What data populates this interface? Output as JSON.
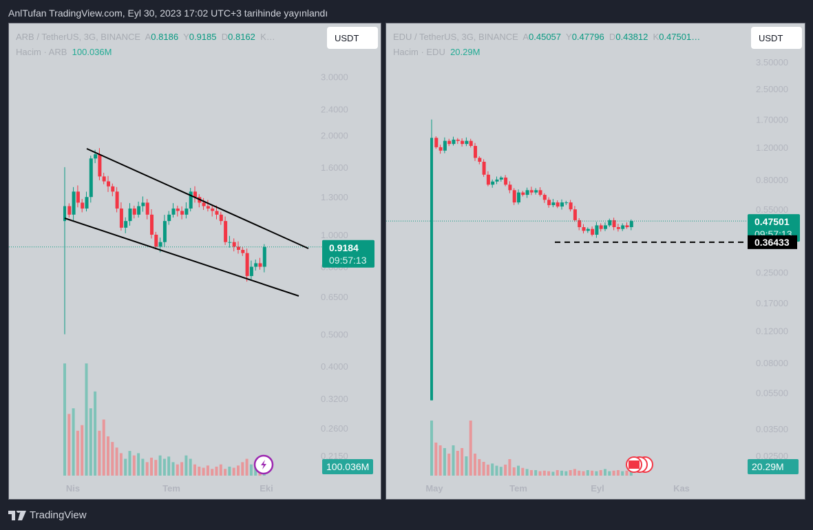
{
  "header": {
    "title": "AnlTufan TradingView.com, Eyl 30, 2023 17:02 UTC+3 tarihinde yayınlandı"
  },
  "footer": {
    "brand": "TradingView"
  },
  "colors": {
    "up": "#089981",
    "down": "#f23645",
    "vol_up": "#7ec3b8",
    "vol_down": "#e8979a",
    "bg": "#ced2d6"
  },
  "left": {
    "symbol": "ARB / TetherUS, 3G, BINANCE",
    "o_label": "A",
    "o": "0.8186",
    "h_label": "Y",
    "h": "0.9185",
    "l_label": "D",
    "l": "0.8162",
    "c_label": "K…",
    "volume_label": "Hacim · ARB",
    "volume": "100.036M",
    "currency": "USDT",
    "price": "0.9184",
    "countdown": "09:57:13",
    "volume_badge": "100.036M",
    "axis": [
      "3.0000",
      "2.4000",
      "2.0000",
      "1.6000",
      "1.3000",
      "1.0000",
      "0.8000",
      "0.6500",
      "0.5000",
      "0.4000",
      "0.3200",
      "0.2600",
      "0.2150"
    ],
    "time_axis": [
      "Nis",
      "Tem",
      "Eki"
    ],
    "first": {
      "o": 1.1,
      "h": 1.6,
      "l": 0.5,
      "c": 1.22
    },
    "closes": [
      1.15,
      1.35,
      1.25,
      1.2,
      1.3,
      1.7,
      1.75,
      1.5,
      1.45,
      1.4,
      1.35,
      1.2,
      1.05,
      1.1,
      1.2,
      1.15,
      1.22,
      1.25,
      1.15,
      1.0,
      0.92,
      0.95,
      1.1,
      1.15,
      1.2,
      1.18,
      1.15,
      1.2,
      1.35,
      1.3,
      1.25,
      1.22,
      1.2,
      1.18,
      1.15,
      1.1,
      0.95,
      0.95,
      0.92,
      0.9,
      0.88,
      0.75,
      0.8,
      0.82,
      0.8,
      0.9184
    ],
    "volumes": [
      100,
      55,
      60,
      40,
      45,
      100,
      60,
      75,
      40,
      50,
      35,
      30,
      25,
      20,
      15,
      22,
      18,
      20,
      15,
      12,
      16,
      14,
      18,
      15,
      17,
      12,
      10,
      12,
      18,
      15,
      10,
      8,
      7,
      9,
      6,
      8,
      10,
      6,
      8,
      7,
      9,
      12,
      15,
      10,
      8,
      6,
      5
    ]
  },
  "right": {
    "symbol": "EDU / TetherUS, 3G, BINANCE",
    "o_label": "A",
    "o": "0.45057",
    "h_label": "Y",
    "h": "0.47796",
    "l_label": "D",
    "l": "0.43812",
    "c_label": "K",
    "c": "0.47501…",
    "volume_label": "Hacim · EDU",
    "volume": "20.29M",
    "currency": "USDT",
    "price": "0.47501",
    "countdown": "09:57:13",
    "level": "0.36433",
    "volume_badge": "20.29M",
    "axis": [
      "3.50000",
      "2.50000",
      "1.70000",
      "1.20000",
      "0.80000",
      "0.55000",
      "0.25000",
      "0.17000",
      "0.12000",
      "0.08000",
      "0.05500",
      "0.03500",
      "0.02500"
    ],
    "time_axis": [
      "May",
      "Tem",
      "Eyl",
      "Kas"
    ],
    "first": {
      "o": 0.05,
      "h": 1.7,
      "l": 0.05,
      "c": 1.35
    },
    "closes": [
      1.2,
      1.15,
      1.3,
      1.25,
      1.32,
      1.3,
      1.25,
      1.3,
      1.22,
      1.05,
      1.0,
      0.85,
      0.75,
      0.78,
      0.8,
      0.82,
      0.75,
      0.7,
      0.6,
      0.68,
      0.66,
      0.7,
      0.68,
      0.7,
      0.66,
      0.62,
      0.58,
      0.6,
      0.57,
      0.6,
      0.6,
      0.55,
      0.48,
      0.44,
      0.42,
      0.43,
      0.4,
      0.45,
      0.43,
      0.45,
      0.48,
      0.44,
      0.43,
      0.45,
      0.44,
      0.475
    ],
    "volumes": [
      100,
      60,
      55,
      50,
      40,
      55,
      45,
      50,
      35,
      100,
      40,
      30,
      25,
      20,
      22,
      18,
      16,
      20,
      30,
      15,
      18,
      14,
      12,
      10,
      10,
      8,
      9,
      8,
      7,
      10,
      9,
      8,
      10,
      12,
      9,
      8,
      10,
      9,
      8,
      10,
      12,
      8,
      9,
      10,
      8,
      9,
      7
    ]
  }
}
